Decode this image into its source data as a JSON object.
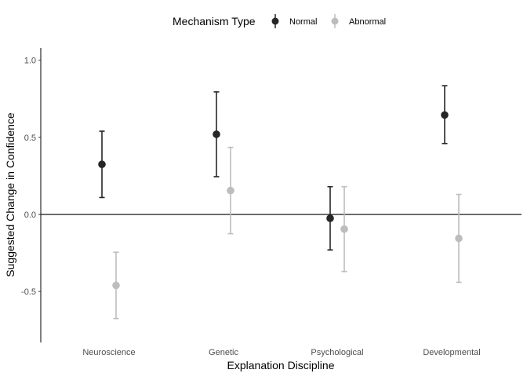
{
  "chart_data": {
    "type": "scatter",
    "subtype": "point-with-error-bars",
    "categories": [
      "Neuroscience",
      "Genetic",
      "Psychological",
      "Developmental"
    ],
    "xlabel": "Explanation Discipline",
    "ylabel": "Suggested Change in Confidence",
    "ylim": [
      -0.83,
      1.08
    ],
    "yticks": [
      -0.5,
      0.0,
      0.5,
      1.0
    ],
    "ytick_labels": [
      "-0.5",
      "0.0",
      "0.5",
      "1.0"
    ],
    "reference_line_y": 0,
    "grid": false,
    "legend": {
      "title": "Mechanism Type",
      "position": "top"
    },
    "series": [
      {
        "name": "Normal",
        "color": "#262626",
        "values": [
          0.325,
          0.52,
          -0.025,
          0.645
        ],
        "lower": [
          0.11,
          0.245,
          -0.23,
          0.46
        ],
        "upper": [
          0.54,
          0.795,
          0.18,
          0.835
        ]
      },
      {
        "name": "Abnormal",
        "color": "#bdbdbd",
        "values": [
          -0.46,
          0.155,
          -0.095,
          -0.155
        ],
        "lower": [
          -0.675,
          -0.125,
          -0.37,
          -0.44
        ],
        "upper": [
          -0.245,
          0.435,
          0.18,
          0.13
        ]
      }
    ]
  }
}
